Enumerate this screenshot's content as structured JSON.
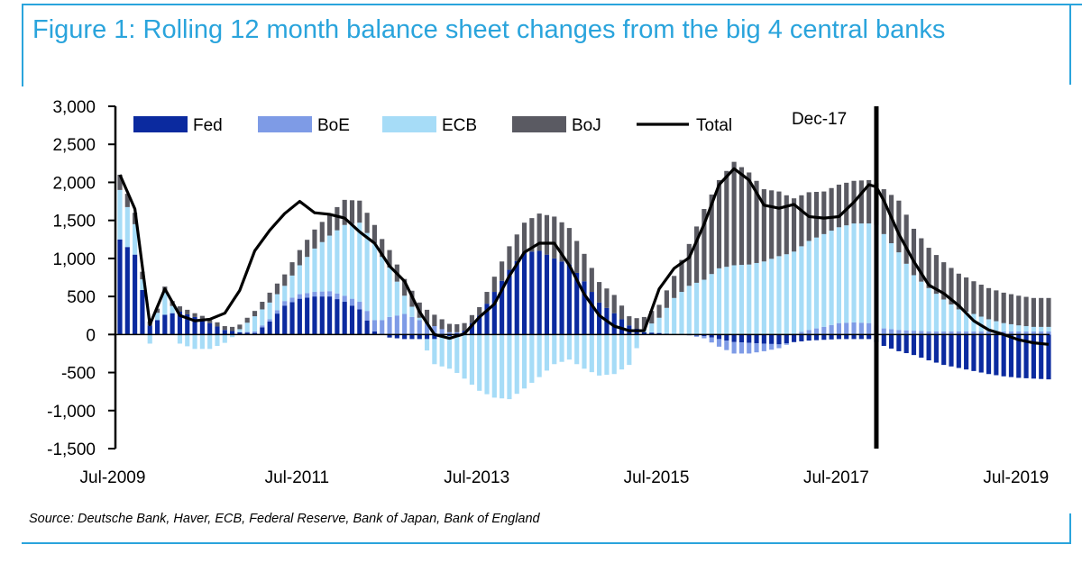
{
  "title": "Figure 1: Rolling 12 month balance sheet changes from the big 4 central banks",
  "source": "Source: Deutsche Bank, Haver, ECB, Federal Reserve, Bank of Japan, Bank of England",
  "colors": {
    "brand": "#2aa4dc",
    "Fed": "#0b2a9f",
    "BoE": "#7e9be6",
    "ECB": "#a6dcf7",
    "BoJ": "#5a5a62",
    "Total": "#000000"
  },
  "chart_data": {
    "type": "bar",
    "stacked": true,
    "title": "Rolling 12 month balance sheet changes from the big 4 central banks",
    "xlabel": "",
    "ylabel": "",
    "ylim": [
      -1500,
      3000
    ],
    "yticks": [
      3000,
      2500,
      2000,
      1500,
      1000,
      500,
      0,
      -500,
      -1000,
      -1500
    ],
    "ytick_labels": [
      "3,000",
      "2,500",
      "2,000",
      "1,500",
      "1,000",
      "500",
      "0",
      "-500",
      "-1,000",
      "-1,500"
    ],
    "xticks": [
      "Jul-2009",
      "Jul-2011",
      "Jul-2013",
      "Jul-2015",
      "Jul-2017",
      "Jul-2019"
    ],
    "xtick_index": [
      0,
      24,
      48,
      72,
      96,
      120
    ],
    "annotation": {
      "label": "Dec-17",
      "index": 101
    },
    "legend": [
      "Fed",
      "BoE",
      "ECB",
      "BoJ",
      "Total"
    ],
    "legend_position": "top-left",
    "key_points": {
      "index": [
        0,
        2,
        4,
        6,
        8,
        10,
        12,
        14,
        16,
        18,
        20,
        22,
        24,
        26,
        28,
        30,
        32,
        34,
        36,
        38,
        40,
        42,
        44,
        46,
        48,
        50,
        52,
        54,
        56,
        58,
        60,
        62,
        64,
        66,
        68,
        70,
        72,
        74,
        76,
        78,
        80,
        82,
        84,
        86,
        88,
        90,
        92,
        94,
        96,
        98,
        100,
        101,
        102,
        104,
        106,
        108,
        110,
        112,
        114,
        116,
        118,
        120,
        122,
        124
      ],
      "Fed": [
        1250,
        1050,
        120,
        260,
        300,
        230,
        150,
        60,
        30,
        20,
        170,
        380,
        470,
        500,
        500,
        430,
        330,
        40,
        -40,
        -60,
        -60,
        -60,
        -20,
        50,
        250,
        560,
        850,
        1080,
        1100,
        1000,
        920,
        700,
        420,
        280,
        120,
        30,
        20,
        0,
        -10,
        -20,
        -60,
        -100,
        -110,
        -120,
        -130,
        -100,
        -80,
        -70,
        -60,
        -60,
        -60,
        -100,
        -150,
        -220,
        -270,
        -340,
        -400,
        -440,
        -480,
        -520,
        -550,
        -570,
        -580,
        -590
      ],
      "BoE": [
        0,
        0,
        0,
        0,
        0,
        0,
        0,
        0,
        0,
        20,
        30,
        60,
        60,
        60,
        70,
        80,
        100,
        150,
        230,
        270,
        190,
        110,
        30,
        0,
        0,
        0,
        0,
        0,
        0,
        0,
        0,
        0,
        0,
        0,
        0,
        0,
        0,
        0,
        0,
        -30,
        -100,
        -150,
        -140,
        -100,
        -50,
        10,
        60,
        100,
        150,
        160,
        150,
        120,
        80,
        60,
        50,
        40,
        40,
        40,
        40,
        40,
        40,
        40,
        40,
        40
      ],
      "ECB": [
        650,
        400,
        -120,
        310,
        -120,
        -190,
        -190,
        -110,
        40,
        200,
        220,
        200,
        380,
        570,
        730,
        930,
        1040,
        1010,
        650,
        240,
        30,
        -330,
        -430,
        -580,
        -740,
        -830,
        -850,
        -710,
        -560,
        -390,
        -330,
        -450,
        -540,
        -520,
        -400,
        40,
        200,
        480,
        640,
        720,
        870,
        910,
        920,
        960,
        1030,
        1080,
        1170,
        1220,
        1260,
        1300,
        1310,
        1320,
        1240,
        1020,
        730,
        570,
        420,
        290,
        230,
        160,
        110,
        80,
        60,
        60
      ],
      "BoJ": [
        200,
        150,
        50,
        60,
        70,
        50,
        60,
        50,
        60,
        70,
        130,
        150,
        200,
        250,
        280,
        330,
        290,
        240,
        230,
        220,
        200,
        150,
        110,
        100,
        110,
        200,
        310,
        390,
        490,
        550,
        480,
        360,
        270,
        240,
        120,
        160,
        170,
        290,
        550,
        930,
        1160,
        1360,
        1210,
        950,
        850,
        700,
        640,
        560,
        560,
        560,
        570,
        550,
        590,
        680,
        610,
        530,
        490,
        470,
        430,
        410,
        400,
        390,
        380,
        380
      ],
      "Total": [
        2100,
        1650,
        130,
        600,
        250,
        180,
        200,
        280,
        580,
        1100,
        1370,
        1590,
        1750,
        1600,
        1580,
        1530,
        1350,
        1200,
        900,
        700,
        300,
        0,
        -50,
        10,
        230,
        400,
        770,
        1080,
        1200,
        1200,
        910,
        530,
        250,
        110,
        50,
        50,
        600,
        870,
        1010,
        1450,
        1970,
        2180,
        2030,
        1700,
        1660,
        1710,
        1550,
        1530,
        1550,
        1740,
        1970,
        1940,
        1760,
        1320,
        960,
        650,
        540,
        380,
        180,
        60,
        0,
        -70,
        -110,
        -130
      ]
    }
  }
}
